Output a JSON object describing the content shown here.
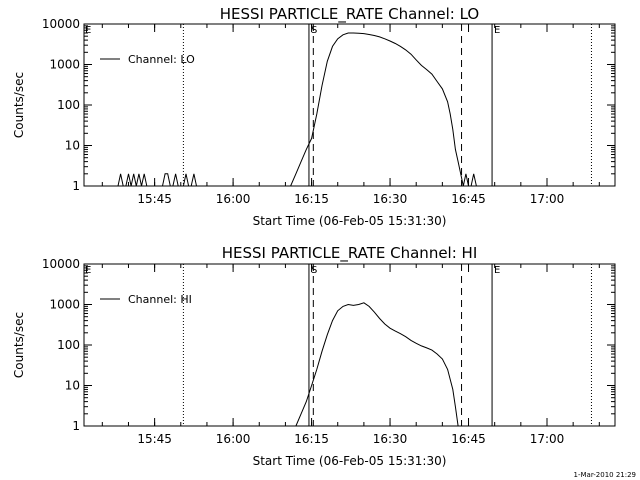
{
  "chart_data": [
    {
      "type": "line",
      "title": "HESSI PARTICLE_RATE Channel: LO",
      "xlabel": "Start Time (06-Feb-05 15:31:30)",
      "ylabel": "Counts/sec",
      "y_scale": "log",
      "ylim": [
        1,
        10000
      ],
      "xlim": [
        "15:31:30",
        "17:13:00"
      ],
      "x_tick_labels": [
        "15:45",
        "16:00",
        "16:15",
        "16:30",
        "16:45",
        "17:00"
      ],
      "y_tick_labels": [
        "1",
        "10",
        "100",
        "1000",
        "10000"
      ],
      "legend": {
        "entries": [
          "Channel: LO"
        ],
        "placement": "top-left"
      },
      "markers": {
        "start_label": "S",
        "end_label": "E"
      },
      "vertical_lines": {
        "dotted": [
          "15:50:30",
          "17:08:30"
        ],
        "solid": [
          "16:14:30",
          "16:49:30"
        ],
        "dashed": [
          "16:15:20",
          "16:43:40"
        ]
      },
      "series": [
        {
          "x": [
            "15:38:00",
            "15:38:30",
            "15:39:00",
            "15:39:30",
            "15:40:00",
            "15:40:30",
            "15:41:00",
            "15:41:30",
            "15:42:00",
            "15:42:30",
            "15:43:00",
            "15:43:30",
            "15:44:00",
            "15:46:30",
            "15:47:00",
            "15:47:30",
            "15:48:00",
            "15:48:30",
            "15:49:00",
            "15:49:30",
            "15:50:00",
            "15:50:30",
            "15:51:00",
            "15:51:30",
            "15:52:00",
            "15:52:30",
            "15:53:00",
            "15:53:30",
            "16:11:00",
            "16:12:00",
            "16:13:00",
            "16:14:00",
            "16:15:00",
            "16:16:00",
            "16:17:00",
            "16:18:00",
            "16:19:00",
            "16:20:00",
            "16:21:00",
            "16:22:00",
            "16:23:00",
            "16:24:00",
            "16:25:00",
            "16:26:00",
            "16:27:00",
            "16:28:00",
            "16:29:00",
            "16:30:00",
            "16:31:00",
            "16:32:00",
            "16:33:00",
            "16:34:00",
            "16:35:00",
            "16:36:00",
            "16:37:00",
            "16:38:00",
            "16:39:00",
            "16:40:00",
            "16:41:00",
            "16:41:30",
            "16:42:00",
            "16:42:30",
            "16:43:00",
            "16:43:30",
            "16:44:00",
            "16:44:30",
            "16:45:00",
            "16:45:30",
            "16:46:00",
            "16:46:30"
          ],
          "y": [
            1,
            2,
            1,
            1,
            2,
            1,
            2,
            1,
            2,
            1,
            2,
            1,
            1,
            1,
            2,
            2,
            1,
            1,
            2,
            1,
            1,
            1,
            2,
            1,
            1,
            2,
            1,
            1,
            1,
            2,
            4,
            8,
            15,
            60,
            300,
            1200,
            2800,
            4300,
            5400,
            6000,
            6000,
            5900,
            5800,
            5500,
            5200,
            4800,
            4300,
            3800,
            3300,
            2800,
            2300,
            1800,
            1300,
            950,
            750,
            580,
            380,
            250,
            120,
            60,
            25,
            8,
            4,
            2,
            1,
            2,
            1,
            1,
            2,
            1
          ]
        }
      ]
    },
    {
      "type": "line",
      "title": "HESSI PARTICLE_RATE Channel: HI",
      "xlabel": "Start Time (06-Feb-05 15:31:30)",
      "ylabel": "Counts/sec",
      "y_scale": "log",
      "ylim": [
        1,
        10000
      ],
      "xlim": [
        "15:31:30",
        "17:13:00"
      ],
      "x_tick_labels": [
        "15:45",
        "16:00",
        "16:15",
        "16:30",
        "16:45",
        "17:00"
      ],
      "y_tick_labels": [
        "1",
        "10",
        "100",
        "1000",
        "10000"
      ],
      "legend": {
        "entries": [
          "Channel: HI"
        ],
        "placement": "top-left"
      },
      "markers": {
        "start_label": "S",
        "end_label": "E"
      },
      "vertical_lines": {
        "dotted": [
          "15:50:30",
          "17:08:30"
        ],
        "solid": [
          "16:14:30",
          "16:49:30"
        ],
        "dashed": [
          "16:15:20",
          "16:43:40"
        ]
      },
      "series": [
        {
          "x": [
            "16:12:00",
            "16:13:00",
            "16:14:00",
            "16:15:00",
            "16:16:00",
            "16:17:00",
            "16:18:00",
            "16:19:00",
            "16:20:00",
            "16:21:00",
            "16:22:00",
            "16:23:00",
            "16:24:00",
            "16:25:00",
            "16:26:00",
            "16:27:00",
            "16:28:00",
            "16:29:00",
            "16:30:00",
            "16:31:00",
            "16:32:00",
            "16:33:00",
            "16:34:00",
            "16:35:00",
            "16:36:00",
            "16:37:00",
            "16:38:00",
            "16:39:00",
            "16:40:00",
            "16:41:00",
            "16:42:00",
            "16:42:30",
            "16:43:00"
          ],
          "y": [
            1,
            2,
            4,
            10,
            25,
            70,
            180,
            400,
            700,
            900,
            1000,
            950,
            1000,
            1100,
            900,
            650,
            450,
            330,
            260,
            220,
            190,
            160,
            130,
            110,
            95,
            85,
            75,
            60,
            45,
            25,
            8,
            3,
            1
          ]
        }
      ]
    }
  ],
  "timestamp": "1-Mar-2010 21:29"
}
